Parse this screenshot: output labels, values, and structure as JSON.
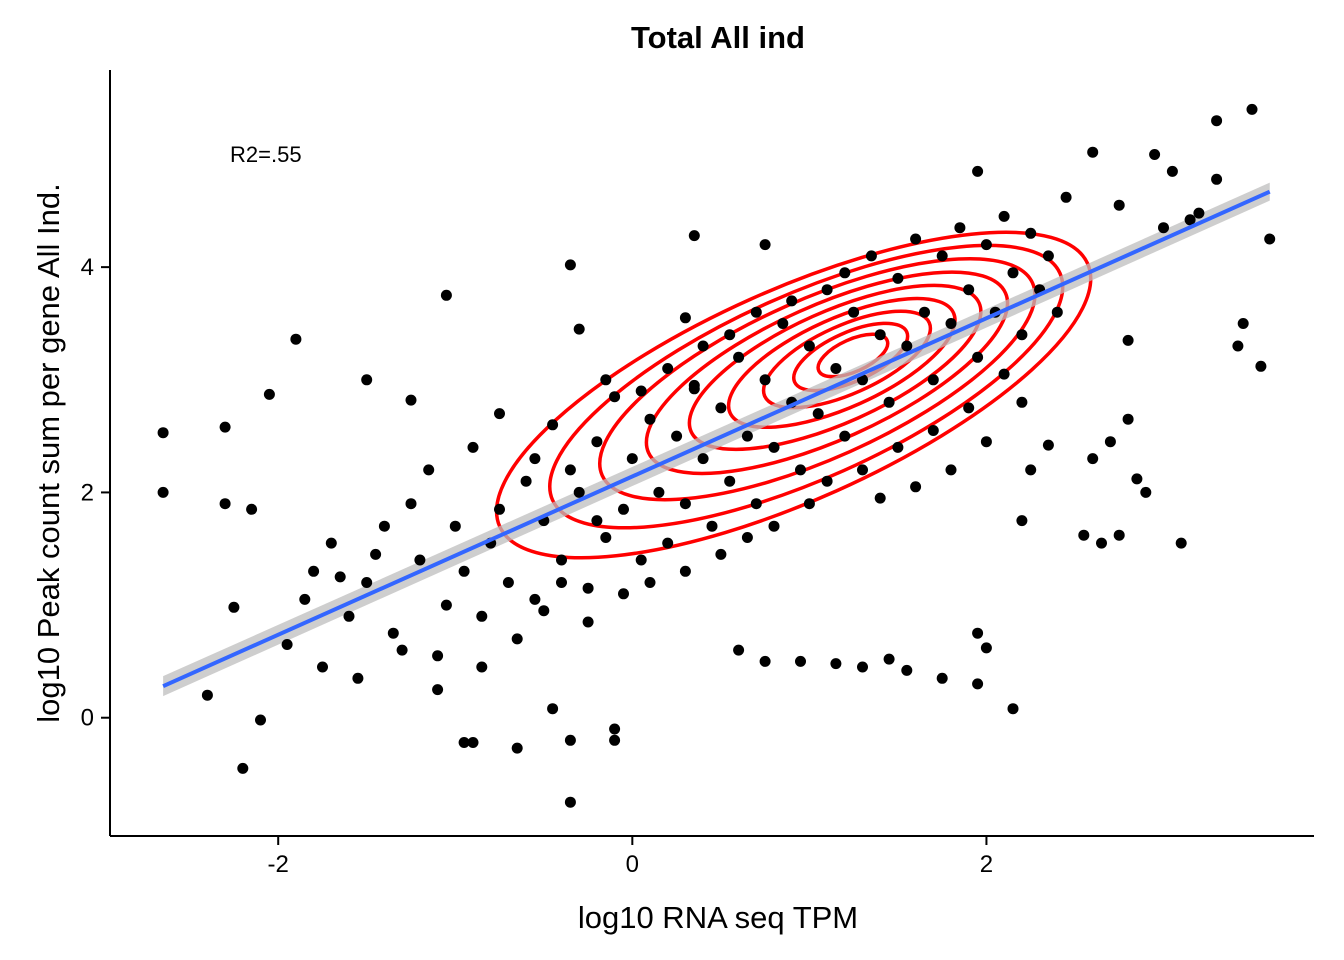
{
  "chart_data": {
    "type": "scatter",
    "title": "Total All ind",
    "xlabel": "log10 RNA seq TPM",
    "ylabel": "log10 Peak count sum per gene All Ind.",
    "annotation": "R2=.55",
    "xlim": [
      -2.95,
      3.85
    ],
    "ylim": [
      -1.05,
      5.75
    ],
    "x_ticks": [
      -2,
      0,
      2
    ],
    "y_ticks": [
      0,
      2,
      4
    ],
    "x_tick_labels": [
      "-2",
      "0",
      "2"
    ],
    "y_tick_labels": [
      "0",
      "2",
      "4"
    ],
    "grid": false,
    "legend": "none",
    "colors": {
      "points": "#000000",
      "fit_line": "#3366FF",
      "confidence_band": "#BEBEBE",
      "density_contours": "#FF0000"
    },
    "regression_line": {
      "x": [
        -2.65,
        3.6
      ],
      "y": [
        0.28,
        4.67
      ]
    },
    "density_contours": {
      "center": [
        1.25,
        3.22
      ],
      "levels": 9
    },
    "series": [
      {
        "points": [
          [
            -2.65,
            2.53
          ],
          [
            -2.65,
            2.0
          ],
          [
            -2.4,
            0.2
          ],
          [
            -2.2,
            -0.45
          ],
          [
            -2.1,
            -0.02
          ],
          [
            -2.3,
            2.58
          ],
          [
            -2.3,
            1.9
          ],
          [
            -2.25,
            0.98
          ],
          [
            -2.15,
            1.85
          ],
          [
            -2.05,
            2.87
          ],
          [
            -1.9,
            3.36
          ],
          [
            -1.5,
            3.0
          ],
          [
            -1.25,
            2.82
          ],
          [
            -1.05,
            3.75
          ],
          [
            -1.1,
            0.55
          ],
          [
            -0.95,
            -0.22
          ],
          [
            -0.9,
            -0.22
          ],
          [
            -0.65,
            -0.27
          ],
          [
            -0.45,
            0.08
          ],
          [
            -0.35,
            -0.75
          ],
          [
            -0.35,
            -0.2
          ],
          [
            -0.35,
            4.02
          ],
          [
            -0.3,
            3.45
          ],
          [
            -0.1,
            -0.1
          ],
          [
            -0.1,
            -0.2
          ],
          [
            0.3,
            3.55
          ],
          [
            0.35,
            2.92
          ],
          [
            0.6,
            0.6
          ],
          [
            0.75,
            0.5
          ],
          [
            0.95,
            0.5
          ],
          [
            1.15,
            0.48
          ],
          [
            1.3,
            0.45
          ],
          [
            1.45,
            0.52
          ],
          [
            1.55,
            0.42
          ],
          [
            1.75,
            0.35
          ],
          [
            1.95,
            0.75
          ],
          [
            2.0,
            0.62
          ],
          [
            1.95,
            0.3
          ],
          [
            2.15,
            0.08
          ],
          [
            2.2,
            1.75
          ],
          [
            2.55,
            1.62
          ],
          [
            2.6,
            2.3
          ],
          [
            2.65,
            1.55
          ],
          [
            2.75,
            1.62
          ],
          [
            2.9,
            2.0
          ],
          [
            2.85,
            2.12
          ],
          [
            3.1,
            1.55
          ],
          [
            2.6,
            5.02
          ],
          [
            2.95,
            5.0
          ],
          [
            3.05,
            4.85
          ],
          [
            3.3,
            5.3
          ],
          [
            3.5,
            5.4
          ],
          [
            3.3,
            4.78
          ],
          [
            3.45,
            3.5
          ],
          [
            3.42,
            3.3
          ],
          [
            3.55,
            3.12
          ],
          [
            3.6,
            4.25
          ],
          [
            3.0,
            4.35
          ],
          [
            3.15,
            4.42
          ],
          [
            3.2,
            4.48
          ],
          [
            1.95,
            4.85
          ],
          [
            2.45,
            4.62
          ],
          [
            2.75,
            4.55
          ],
          [
            0.35,
            4.28
          ],
          [
            0.75,
            4.2
          ],
          [
            2.8,
            3.35
          ],
          [
            2.7,
            2.45
          ],
          [
            2.8,
            2.65
          ],
          [
            2.35,
            2.42
          ],
          [
            2.25,
            2.2
          ],
          [
            -1.8,
            1.3
          ],
          [
            -1.7,
            1.55
          ],
          [
            -1.6,
            0.9
          ],
          [
            -1.5,
            1.2
          ],
          [
            -1.4,
            1.7
          ],
          [
            -1.35,
            0.75
          ],
          [
            -1.2,
            1.4
          ],
          [
            -1.15,
            2.2
          ],
          [
            -1.05,
            1.0
          ],
          [
            -1.0,
            1.7
          ],
          [
            -0.9,
            2.4
          ],
          [
            -0.85,
            0.9
          ],
          [
            -0.8,
            1.55
          ],
          [
            -0.75,
            2.7
          ],
          [
            -0.7,
            1.2
          ],
          [
            -0.6,
            2.1
          ],
          [
            -0.55,
            1.05
          ],
          [
            -0.5,
            1.75
          ],
          [
            -0.45,
            2.6
          ],
          [
            -0.4,
            1.4
          ],
          [
            -0.3,
            2.0
          ],
          [
            -0.25,
            1.15
          ],
          [
            -0.2,
            2.45
          ],
          [
            -0.15,
            1.6
          ],
          [
            -0.1,
            2.85
          ],
          [
            -0.05,
            1.85
          ],
          [
            0.0,
            2.3
          ],
          [
            0.05,
            1.4
          ],
          [
            0.1,
            2.65
          ],
          [
            0.15,
            2.0
          ],
          [
            0.2,
            1.55
          ],
          [
            0.25,
            2.5
          ],
          [
            0.3,
            1.9
          ],
          [
            0.35,
            2.95
          ],
          [
            0.4,
            2.3
          ],
          [
            0.45,
            1.7
          ],
          [
            0.5,
            2.75
          ],
          [
            0.55,
            2.1
          ],
          [
            0.6,
            3.2
          ],
          [
            0.65,
            2.5
          ],
          [
            0.7,
            1.9
          ],
          [
            0.75,
            3.0
          ],
          [
            0.8,
            2.4
          ],
          [
            0.85,
            3.5
          ],
          [
            0.9,
            2.8
          ],
          [
            0.95,
            2.2
          ],
          [
            1.0,
            3.3
          ],
          [
            1.05,
            2.7
          ],
          [
            1.1,
            3.8
          ],
          [
            1.15,
            3.1
          ],
          [
            1.2,
            2.5
          ],
          [
            1.25,
            3.6
          ],
          [
            1.3,
            3.0
          ],
          [
            1.35,
            4.1
          ],
          [
            1.4,
            3.4
          ],
          [
            1.45,
            2.8
          ],
          [
            1.5,
            3.9
          ],
          [
            1.55,
            3.3
          ],
          [
            1.6,
            4.25
          ],
          [
            1.65,
            3.6
          ],
          [
            1.7,
            3.0
          ],
          [
            1.75,
            4.1
          ],
          [
            1.8,
            3.5
          ],
          [
            1.85,
            4.35
          ],
          [
            1.9,
            3.8
          ],
          [
            1.95,
            3.2
          ],
          [
            2.0,
            4.2
          ],
          [
            2.05,
            3.6
          ],
          [
            2.1,
            4.45
          ],
          [
            2.15,
            3.95
          ],
          [
            2.2,
            3.4
          ],
          [
            2.25,
            4.3
          ],
          [
            2.3,
            3.8
          ],
          [
            2.35,
            4.1
          ],
          [
            2.4,
            3.6
          ],
          [
            -1.95,
            0.65
          ],
          [
            -1.85,
            1.05
          ],
          [
            -1.75,
            0.45
          ],
          [
            -1.65,
            1.25
          ],
          [
            -1.55,
            0.35
          ],
          [
            -1.45,
            1.45
          ],
          [
            -1.3,
            0.6
          ],
          [
            -1.25,
            1.9
          ],
          [
            -1.1,
            0.25
          ],
          [
            -0.95,
            1.3
          ],
          [
            -0.85,
            0.45
          ],
          [
            -0.75,
            1.85
          ],
          [
            -0.65,
            0.7
          ],
          [
            -0.55,
            2.3
          ],
          [
            -0.5,
            0.95
          ],
          [
            -0.4,
            1.2
          ],
          [
            -0.35,
            2.2
          ],
          [
            -0.25,
            0.85
          ],
          [
            -0.2,
            1.75
          ],
          [
            -0.15,
            3.0
          ],
          [
            -0.05,
            1.1
          ],
          [
            0.05,
            2.9
          ],
          [
            0.1,
            1.2
          ],
          [
            0.2,
            3.1
          ],
          [
            0.3,
            1.3
          ],
          [
            0.4,
            3.3
          ],
          [
            0.5,
            1.45
          ],
          [
            0.55,
            3.4
          ],
          [
            0.65,
            1.6
          ],
          [
            0.7,
            3.6
          ],
          [
            0.8,
            1.7
          ],
          [
            0.9,
            3.7
          ],
          [
            1.0,
            1.9
          ],
          [
            1.1,
            2.1
          ],
          [
            1.2,
            3.95
          ],
          [
            1.3,
            2.2
          ],
          [
            1.4,
            1.95
          ],
          [
            1.5,
            2.4
          ],
          [
            1.6,
            2.05
          ],
          [
            1.7,
            2.55
          ],
          [
            1.8,
            2.2
          ],
          [
            1.9,
            2.75
          ],
          [
            2.0,
            2.45
          ],
          [
            2.1,
            3.05
          ],
          [
            2.2,
            2.8
          ]
        ]
      }
    ]
  }
}
